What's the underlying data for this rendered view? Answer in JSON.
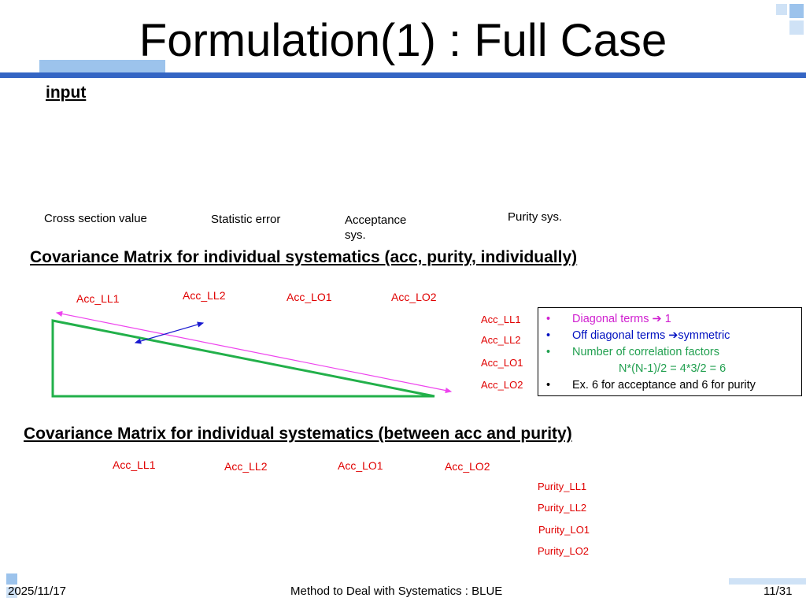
{
  "header": {
    "title": "Formulation(1) : Full Case"
  },
  "input": {
    "label": "input",
    "columns": [
      "Cross section value",
      "Statistic error",
      "Acceptance sys.",
      "Purity sys."
    ]
  },
  "section1": {
    "heading": "Covariance Matrix for individual systematics (acc, purity, individually)",
    "columns": [
      "Acc_LL1",
      "Acc_LL2",
      "Acc_LO1",
      "Acc_LO2"
    ],
    "rows": [
      "Acc_LL1",
      "Acc_LL2",
      "Acc_LO1",
      "Acc_LO2"
    ],
    "notes": [
      "Diagonal terms ➔ 1",
      "Off diagonal terms ➔symmetric",
      "Number of correlation factors",
      "N*(N-1)/2 = 4*3/2 = 6",
      "Ex. 6 for acceptance and 6 for purity"
    ]
  },
  "section2": {
    "heading": "Covariance Matrix for individual systematics (between acc and purity)",
    "columns": [
      "Acc_LL1",
      "Acc_LL2",
      "Acc_LO1",
      "Acc_LO2"
    ],
    "rows": [
      "Purity_LL1",
      "Purity_LL2",
      "Purity_LO1",
      "Purity_LO2"
    ]
  },
  "footer": {
    "date": "2025/11/17",
    "title": "Method to Deal with Systematics : BLUE",
    "page": "11/31"
  }
}
